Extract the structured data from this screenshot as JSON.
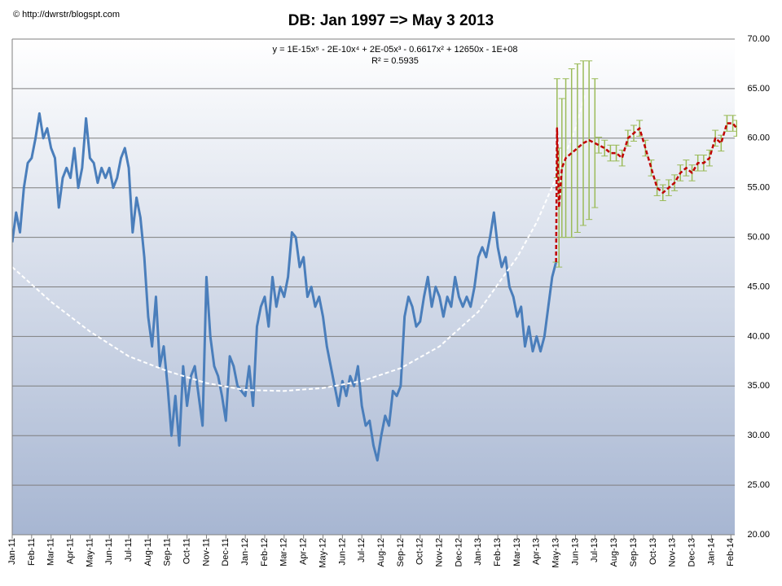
{
  "chart_data": {
    "type": "line",
    "credit": "© http://dwrstr/blogspt.com",
    "title": "DB: Jan 1997 => May 3 2013",
    "equation": "y = 1E-15x⁵ - 2E-10x⁴ + 2E-05x³ - 0.6617x² + 12650x - 1E+08",
    "r_squared": "R² = 0.5935",
    "xlim": [
      0,
      37.2
    ],
    "xticks": [
      {
        "value": 0,
        "label": "Jan-11"
      },
      {
        "value": 1,
        "label": "Feb-11"
      },
      {
        "value": 2,
        "label": "Mar-11"
      },
      {
        "value": 3,
        "label": "Apr-11"
      },
      {
        "value": 4,
        "label": "May-11"
      },
      {
        "value": 5,
        "label": "Jun-11"
      },
      {
        "value": 6,
        "label": "Jul-11"
      },
      {
        "value": 7,
        "label": "Aug-11"
      },
      {
        "value": 8,
        "label": "Sep-11"
      },
      {
        "value": 9,
        "label": "Oct-11"
      },
      {
        "value": 10,
        "label": "Nov-11"
      },
      {
        "value": 11,
        "label": "Dec-11"
      },
      {
        "value": 12,
        "label": "Jan-12"
      },
      {
        "value": 13,
        "label": "Feb-12"
      },
      {
        "value": 14,
        "label": "Mar-12"
      },
      {
        "value": 15,
        "label": "Apr-12"
      },
      {
        "value": 16,
        "label": "May-12"
      },
      {
        "value": 17,
        "label": "Jun-12"
      },
      {
        "value": 18,
        "label": "Jul-12"
      },
      {
        "value": 19,
        "label": "Aug-12"
      },
      {
        "value": 20,
        "label": "Sep-12"
      },
      {
        "value": 21,
        "label": "Oct-12"
      },
      {
        "value": 22,
        "label": "Nov-12"
      },
      {
        "value": 23,
        "label": "Dec-12"
      },
      {
        "value": 24,
        "label": "Jan-13"
      },
      {
        "value": 25,
        "label": "Feb-13"
      },
      {
        "value": 26,
        "label": "Mar-13"
      },
      {
        "value": 27,
        "label": "Apr-13"
      },
      {
        "value": 28,
        "label": "May-13"
      },
      {
        "value": 29,
        "label": "Jun-13"
      },
      {
        "value": 30,
        "label": "Jul-13"
      },
      {
        "value": 31,
        "label": "Aug-13"
      },
      {
        "value": 32,
        "label": "Sep-13"
      },
      {
        "value": 33,
        "label": "Oct-13"
      },
      {
        "value": 34,
        "label": "Nov-13"
      },
      {
        "value": 35,
        "label": "Dec-13"
      },
      {
        "value": 36,
        "label": "Jan-14"
      },
      {
        "value": 37,
        "label": "Feb-14"
      }
    ],
    "ylim": [
      20,
      70
    ],
    "yticks": [
      {
        "value": 20,
        "label": "20.00"
      },
      {
        "value": 25,
        "label": "25.00"
      },
      {
        "value": 30,
        "label": "30.00"
      },
      {
        "value": 35,
        "label": "35.00"
      },
      {
        "value": 40,
        "label": "40.00"
      },
      {
        "value": 45,
        "label": "45.00"
      },
      {
        "value": 50,
        "label": "50.00"
      },
      {
        "value": 55,
        "label": "55.00"
      },
      {
        "value": 60,
        "label": "60.00"
      },
      {
        "value": 65,
        "label": "65.00"
      },
      {
        "value": 70,
        "label": "70.00"
      }
    ],
    "grid": true,
    "series": [
      {
        "color": "#4a7ebb",
        "line_style": "solid",
        "width": 3,
        "x": [
          0,
          0.2,
          0.4,
          0.6,
          0.8,
          1,
          1.2,
          1.4,
          1.6,
          1.8,
          2,
          2.2,
          2.4,
          2.6,
          2.8,
          3,
          3.2,
          3.4,
          3.6,
          3.8,
          4,
          4.2,
          4.4,
          4.6,
          4.8,
          5,
          5.2,
          5.4,
          5.6,
          5.8,
          6,
          6.2,
          6.4,
          6.6,
          6.8,
          7,
          7.2,
          7.4,
          7.6,
          7.8,
          8,
          8.2,
          8.4,
          8.6,
          8.8,
          9,
          9.2,
          9.4,
          9.6,
          9.8,
          10,
          10.2,
          10.4,
          10.6,
          10.8,
          11,
          11.2,
          11.4,
          11.6,
          11.8,
          12,
          12.2,
          12.4,
          12.6,
          12.8,
          13,
          13.2,
          13.4,
          13.6,
          13.8,
          14,
          14.2,
          14.4,
          14.6,
          14.8,
          15,
          15.2,
          15.4,
          15.6,
          15.8,
          16,
          16.2,
          16.4,
          16.6,
          16.8,
          17,
          17.2,
          17.4,
          17.6,
          17.8,
          18,
          18.2,
          18.4,
          18.6,
          18.8,
          19,
          19.2,
          19.4,
          19.6,
          19.8,
          20,
          20.2,
          20.4,
          20.6,
          20.8,
          21,
          21.2,
          21.4,
          21.6,
          21.8,
          22,
          22.2,
          22.4,
          22.6,
          22.8,
          23,
          23.2,
          23.4,
          23.6,
          23.8,
          24,
          24.2,
          24.4,
          24.6,
          24.8,
          25,
          25.2,
          25.4,
          25.6,
          25.8,
          26,
          26.2,
          26.4,
          26.6,
          26.8,
          27,
          27.2,
          27.4,
          27.6,
          27.8,
          28
        ],
        "values": [
          49.5,
          52.5,
          50.5,
          55,
          57.5,
          58,
          60,
          62.5,
          60,
          61,
          59,
          58,
          53,
          56,
          57,
          56,
          59,
          55,
          57,
          62,
          58,
          57.5,
          55.5,
          57,
          56,
          57,
          55,
          56,
          58,
          59,
          57,
          50.5,
          54,
          52,
          48,
          42,
          39,
          44,
          37,
          39,
          35,
          30,
          34,
          29,
          37,
          33,
          36,
          37,
          34,
          31,
          46,
          40,
          37,
          36,
          34,
          31.5,
          38,
          37,
          35,
          34.5,
          34,
          37,
          33,
          41,
          43,
          44,
          41,
          46,
          43,
          45,
          44,
          46,
          50.5,
          50,
          47,
          48,
          44,
          45,
          43,
          44,
          42,
          39,
          37,
          35,
          33,
          35.5,
          34,
          36,
          35,
          37,
          33,
          31,
          31.5,
          29,
          27.5,
          30,
          32,
          31,
          34.5,
          34,
          35,
          42,
          44,
          43,
          41,
          41.5,
          44,
          46,
          43,
          45,
          44,
          42,
          44,
          43,
          46,
          44,
          43,
          44,
          43,
          45,
          48,
          49,
          48,
          50,
          52.5,
          49,
          47,
          48,
          45,
          44,
          42,
          43,
          39,
          41,
          38.5,
          40,
          38.5,
          40,
          43,
          46,
          47.5
        ]
      },
      {
        "color": "#ffffff",
        "line_style": "dashed",
        "width": 2,
        "x": [
          0,
          2,
          4,
          6,
          8,
          10,
          12,
          14,
          16,
          18,
          20,
          22,
          24,
          26,
          27,
          28,
          29,
          29.5
        ],
        "values": [
          47,
          43.5,
          40.5,
          38,
          36.5,
          35.3,
          34.6,
          34.5,
          34.8,
          35.5,
          36.8,
          39,
          42.5,
          48,
          51.5,
          56,
          61,
          64.5
        ]
      },
      {
        "color": "#c00000",
        "line_style": "dashed",
        "width": 2.5,
        "error_color": "#9bbb59",
        "x": [
          28,
          28.05,
          28.15,
          28.3,
          28.5,
          28.8,
          29.1,
          29.4,
          29.7,
          30,
          30.2,
          30.5,
          30.8,
          31.1,
          31.4,
          31.7,
          32,
          32.3,
          32.6,
          32.9,
          33.2,
          33.5,
          33.8,
          34.1,
          34.4,
          34.7,
          35,
          35.3,
          35.6,
          35.9,
          36.2,
          36.5,
          36.8,
          37.1,
          37.3
        ],
        "values": [
          47.5,
          61,
          53,
          57,
          58,
          58.5,
          59,
          59.5,
          59.8,
          59.5,
          59.3,
          59,
          58.5,
          58.5,
          58,
          60,
          60.5,
          61,
          59,
          57,
          55,
          54.5,
          55,
          55.5,
          56.5,
          57,
          56.5,
          57.5,
          57.5,
          58,
          60,
          59.5,
          61.5,
          61.5,
          61
        ],
        "errors": [
          0,
          5,
          6,
          7,
          8,
          8.5,
          8.5,
          8.3,
          8,
          6.5,
          0.8,
          0.8,
          0.8,
          0.8,
          0.8,
          0.8,
          0.8,
          0.8,
          0.8,
          0.8,
          0.8,
          0.8,
          0.8,
          0.8,
          0.8,
          0.8,
          0.8,
          0.8,
          0.8,
          0.8,
          0.8,
          0.8,
          0.8,
          0.8,
          0.8
        ]
      }
    ]
  }
}
